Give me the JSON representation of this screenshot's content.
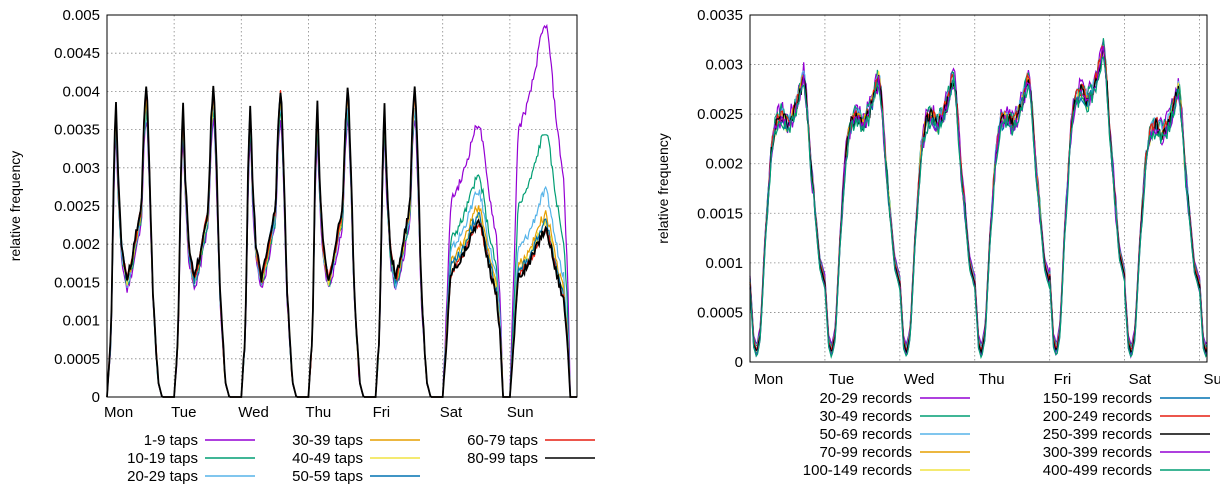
{
  "chart_data": [
    {
      "type": "line",
      "xlabel": "",
      "ylabel": "relative frequency",
      "ylim": [
        0,
        0.005
      ],
      "y_ticks": [
        "0",
        "0.0005",
        "0.001",
        "0.0015",
        "0.002",
        "0.0025",
        "0.003",
        "0.0035",
        "0.004",
        "0.0045",
        "0.005"
      ],
      "x_ticks": [
        "Mon",
        "Tue",
        "Wed",
        "Thu",
        "Fri",
        "Sat",
        "Sun"
      ],
      "grid": true,
      "legend_position": "bottom",
      "day_profiles": {
        "weekday": [
          [
            0,
            0
          ],
          [
            0.06,
            0.0008
          ],
          [
            0.1,
            0.0028
          ],
          [
            0.13,
            0.0038
          ],
          [
            0.17,
            0.0027
          ],
          [
            0.22,
            0.0019
          ],
          [
            0.3,
            0.0015
          ],
          [
            0.38,
            0.0018
          ],
          [
            0.46,
            0.0022
          ],
          [
            0.51,
            0.0024
          ],
          [
            0.55,
            0.0035
          ],
          [
            0.59,
            0.004
          ],
          [
            0.63,
            0.003
          ],
          [
            0.68,
            0.0014
          ],
          [
            0.76,
            0.0002
          ],
          [
            0.82,
            0
          ]
        ],
        "weekend": [
          [
            0,
            0
          ],
          [
            0.06,
            0.0008
          ],
          [
            0.12,
            0.0017
          ],
          [
            0.2,
            0.0018
          ],
          [
            0.28,
            0.0019
          ],
          [
            0.38,
            0.0021
          ],
          [
            0.46,
            0.0023
          ],
          [
            0.54,
            0.0024
          ],
          [
            0.6,
            0.0022
          ],
          [
            0.66,
            0.0019
          ],
          [
            0.74,
            0.0016
          ],
          [
            0.8,
            0.0014
          ],
          [
            0.86,
            0.0008
          ],
          [
            0.9,
            0
          ]
        ]
      },
      "series": [
        {
          "name": "1-9 taps",
          "color": "#9400d3",
          "weekday_scale": 0.93,
          "weekend_scale": 1.5,
          "sat_peak": 0.0036,
          "sun_peak": 0.0049
        },
        {
          "name": "10-19 taps",
          "color": "#009e73",
          "weekday_scale": 0.96,
          "weekend_scale": 1.22,
          "sat_peak": 0.0029,
          "sun_peak": 0.0035
        },
        {
          "name": "20-29 taps",
          "color": "#56b4e9",
          "weekday_scale": 0.98,
          "weekend_scale": 1.1,
          "sat_peak": 0.0027,
          "sun_peak": 0.0027
        },
        {
          "name": "30-39 taps",
          "color": "#e69f00",
          "weekday_scale": 1.0,
          "weekend_scale": 1.02,
          "sat_peak": 0.0025,
          "sun_peak": 0.0024
        },
        {
          "name": "40-49 taps",
          "color": "#f0e442",
          "weekday_scale": 1.01,
          "weekend_scale": 1.0,
          "sat_peak": 0.0024,
          "sun_peak": 0.0023
        },
        {
          "name": "50-59 taps",
          "color": "#0072b2",
          "weekday_scale": 1.02,
          "weekend_scale": 0.99,
          "sat_peak": 0.0024,
          "sun_peak": 0.0023
        },
        {
          "name": "60-79 taps",
          "color": "#e51e10",
          "weekday_scale": 1.02,
          "weekend_scale": 0.98,
          "sat_peak": 0.0023,
          "sun_peak": 0.0022
        },
        {
          "name": "80-99 taps",
          "color": "#000000",
          "weekday_scale": 1.03,
          "weekend_scale": 0.96,
          "sat_peak": 0.0023,
          "sun_peak": 0.0022
        }
      ]
    },
    {
      "type": "line",
      "xlabel": "",
      "ylabel": "relative frequency",
      "ylim": [
        0,
        0.0035
      ],
      "y_ticks": [
        "0",
        "0.0005",
        "0.001",
        "0.0015",
        "0.002",
        "0.0025",
        "0.003",
        "0.0035"
      ],
      "x_ticks": [
        "Mon",
        "Tue",
        "Wed",
        "Thu",
        "Fri",
        "Sat",
        "Sun"
      ],
      "grid": true,
      "legend_position": "bottom",
      "day_profile": [
        [
          0,
          0.0008
        ],
        [
          0.05,
          0.0002
        ],
        [
          0.09,
          0.0001
        ],
        [
          0.14,
          0.0003
        ],
        [
          0.2,
          0.0012
        ],
        [
          0.28,
          0.0021
        ],
        [
          0.34,
          0.0024
        ],
        [
          0.42,
          0.0025
        ],
        [
          0.5,
          0.0024
        ],
        [
          0.58,
          0.0025
        ],
        [
          0.66,
          0.0027
        ],
        [
          0.72,
          0.0029
        ],
        [
          0.76,
          0.0026
        ],
        [
          0.81,
          0.002
        ],
        [
          0.86,
          0.0016
        ],
        [
          0.93,
          0.001
        ],
        [
          1.0,
          0.0008
        ]
      ],
      "series": [
        {
          "name": "20-29 records",
          "color": "#9400d3",
          "offset": 7e-05
        },
        {
          "name": "30-49 records",
          "color": "#009e73",
          "offset": 4e-05
        },
        {
          "name": "50-69 records",
          "color": "#56b4e9",
          "offset": 2e-05
        },
        {
          "name": "70-99 records",
          "color": "#e69f00",
          "offset": 0.0
        },
        {
          "name": "100-149 records",
          "color": "#f0e442",
          "offset": -2e-05
        },
        {
          "name": "150-199 records",
          "color": "#0072b2",
          "offset": -3e-05
        },
        {
          "name": "200-249 records",
          "color": "#e51e10",
          "offset": 1e-05
        },
        {
          "name": "250-399 records",
          "color": "#000000",
          "offset": -1e-05
        },
        {
          "name": "300-399 records",
          "color": "#9400d3",
          "offset": -5e-05
        },
        {
          "name": "400-499 records",
          "color": "#009e73",
          "offset": -6e-05
        }
      ]
    }
  ]
}
